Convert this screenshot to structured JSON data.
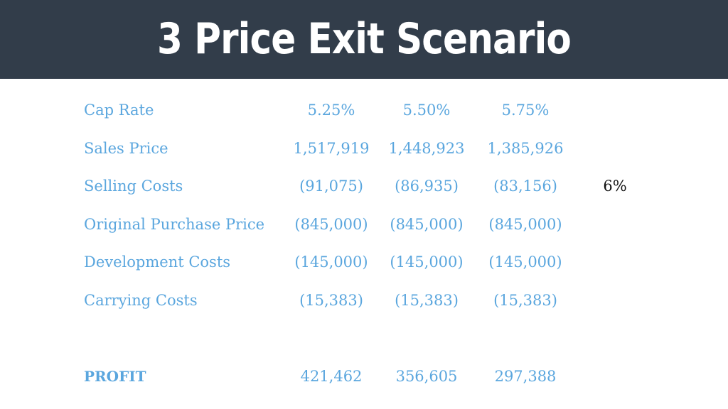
{
  "title": "3 Price Exit Scenario",
  "colors": {
    "header_bg": "#323d4a",
    "accent_text": "#5aa6de",
    "note_text": "#111111"
  },
  "rows": [
    {
      "label": "Cap Rate",
      "values": [
        "5.25%",
        "5.50%",
        "5.75%"
      ],
      "note": ""
    },
    {
      "label": "Sales Price",
      "values": [
        "1,517,919",
        "1,448,923",
        "1,385,926"
      ],
      "note": ""
    },
    {
      "label": "Selling Costs",
      "values": [
        "(91,075)",
        "(86,935)",
        "(83,156)"
      ],
      "note": "6%"
    },
    {
      "label": "Original Purchase Price",
      "values": [
        "(845,000)",
        "(845,000)",
        "(845,000)"
      ],
      "note": ""
    },
    {
      "label": "Development Costs",
      "values": [
        "(145,000)",
        "(145,000)",
        "(145,000)"
      ],
      "note": ""
    },
    {
      "label": "Carrying Costs",
      "values": [
        "(15,383)",
        "(15,383)",
        "(15,383)"
      ],
      "note": ""
    }
  ],
  "profit": {
    "label": "PROFIT",
    "values": [
      "421,462",
      "356,605",
      "297,388"
    ]
  }
}
